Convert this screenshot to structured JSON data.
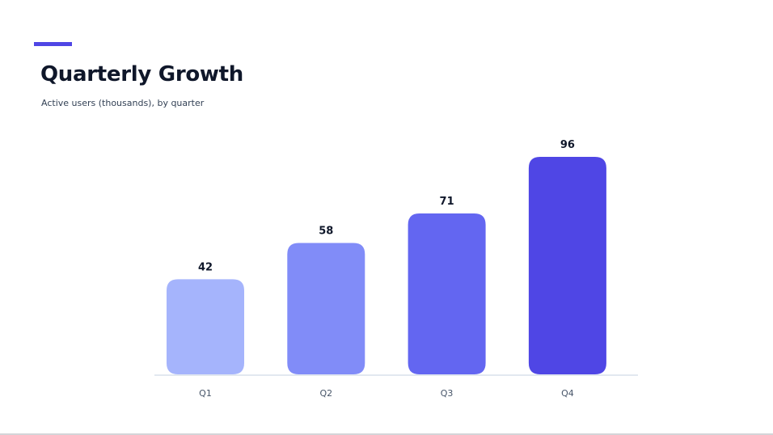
{
  "header": {
    "title": "Quarterly Growth",
    "subtitle": "Active users (thousands), by quarter"
  },
  "colors": {
    "accent": "#4f46e5",
    "baseline": "#e2e8f0",
    "value_label": "#0f172a",
    "tick_label": "#475569"
  },
  "chart_data": {
    "type": "bar",
    "title": "Quarterly Growth",
    "subtitle": "Active users (thousands), by quarter",
    "categories": [
      "Q1",
      "Q2",
      "Q3",
      "Q4"
    ],
    "values": [
      42,
      58,
      71,
      96
    ],
    "bar_colors": [
      "#a5b4fc",
      "#818cf8",
      "#6366f1",
      "#4f46e5"
    ],
    "data_labels": [
      "42",
      "58",
      "71",
      "96"
    ],
    "ylim": [
      0,
      96
    ],
    "grid": false,
    "legend": "none",
    "xlabel": "",
    "ylabel": ""
  }
}
